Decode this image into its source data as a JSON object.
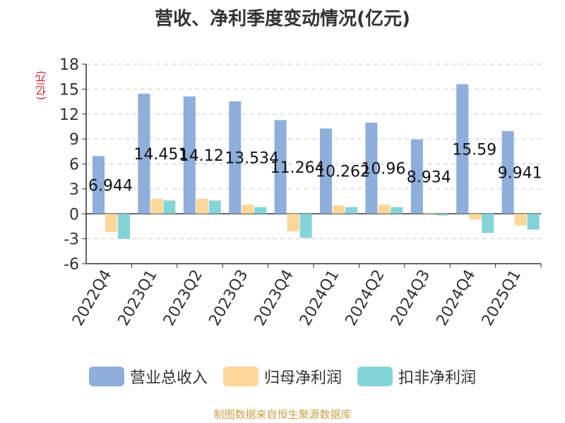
{
  "chart_data": {
    "type": "bar",
    "title": "营收、净利季度变动情况(亿元)",
    "ylabel": "(亿元)",
    "xlabel": "",
    "ylim": [
      -6,
      18
    ],
    "yticks": [
      18,
      15,
      12,
      9,
      6,
      3,
      0,
      -3,
      -6
    ],
    "grid": true,
    "legend_position": "bottom",
    "categories": [
      "2022Q4",
      "2023Q1",
      "2023Q2",
      "2023Q3",
      "2023Q4",
      "2024Q1",
      "2024Q2",
      "2024Q3",
      "2024Q4",
      "2025Q1"
    ],
    "series": [
      {
        "name": "营业总收入",
        "color": "#8eaedc",
        "values": [
          6.944,
          14.451,
          14.12,
          13.534,
          11.264,
          10.262,
          10.96,
          8.934,
          15.59,
          9.941
        ]
      },
      {
        "name": "归母净利润",
        "color": "#fdd69a",
        "values": [
          -2.2,
          1.8,
          1.8,
          1.1,
          -2.1,
          1.0,
          1.1,
          0.1,
          -0.7,
          -1.4
        ]
      },
      {
        "name": "扣非净利润",
        "color": "#84d4d7",
        "values": [
          -3.0,
          1.6,
          1.6,
          0.8,
          -2.9,
          0.8,
          0.8,
          -0.2,
          -2.3,
          -1.9
        ]
      }
    ],
    "data_labels": [
      "6.944",
      "14.451",
      "14.12",
      "13.534",
      "11.264",
      "10.262",
      "10.96",
      "8.934",
      "15.59",
      "9.941"
    ]
  },
  "source_text": "制图数据来自恒生聚源数据库"
}
